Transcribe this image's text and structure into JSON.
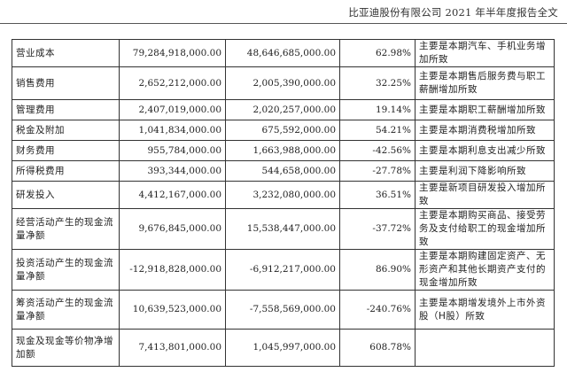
{
  "header": {
    "title": "比亚迪股份有限公司 2021 年半年度报告全文"
  },
  "rows": [
    {
      "item": "营业成本",
      "current": "79,284,918,000.00",
      "previous": "48,646,685,000.00",
      "change": "62.98%",
      "reason": "主要是本期汽车、手机业务增加所致"
    },
    {
      "item": "销售费用",
      "current": "2,652,212,000.00",
      "previous": "2,005,390,000.00",
      "change": "32.25%",
      "reason": "主要是本期售后服务费与职工薪酬增加所致"
    },
    {
      "item": "管理费用",
      "current": "2,407,019,000.00",
      "previous": "2,020,257,000.00",
      "change": "19.14%",
      "reason": "主要是本期职工薪酬增加所致"
    },
    {
      "item": "税金及附加",
      "current": "1,041,834,000.00",
      "previous": "675,592,000.00",
      "change": "54.21%",
      "reason": "主要是本期消费税增加所致"
    },
    {
      "item": "财务费用",
      "current": "955,784,000.00",
      "previous": "1,663,988,000.00",
      "change": "-42.56%",
      "reason": "主要是本期利息支出减少所致"
    },
    {
      "item": "所得税费用",
      "current": "393,344,000.00",
      "previous": "544,658,000.00",
      "change": "-27.78%",
      "reason": "主要是利润下降影响所致"
    },
    {
      "item": "研发投入",
      "current": "4,412,167,000.00",
      "previous": "3,232,080,000.00",
      "change": "36.51%",
      "reason": "主要是新项目研发投入增加所致"
    },
    {
      "item": "经营活动产生的现金流量净额",
      "current": "9,676,845,000.00",
      "previous": "15,538,447,000.00",
      "change": "-37.72%",
      "reason": "主要是本期购买商品、接受劳务及支付给职工的现金增加所致"
    },
    {
      "item": "投资活动产生的现金流量净额",
      "current": "-12,918,828,000.00",
      "previous": "-6,912,217,000.00",
      "change": "86.90%",
      "reason": "主要是本期购建固定资产、无形资产和其他长期资产支付的现金增加所致"
    },
    {
      "item": "筹资活动产生的现金流量净额",
      "current": "10,639,523,000.00",
      "previous": "-7,558,569,000.00",
      "change": "-240.76%",
      "reason": "主要是本期增发境外上市外资股（H股）所致"
    },
    {
      "item": "现金及现金等价物净增加额",
      "current": "7,413,801,000.00",
      "previous": "1,045,997,000.00",
      "change": "608.78%",
      "reason": ""
    }
  ]
}
